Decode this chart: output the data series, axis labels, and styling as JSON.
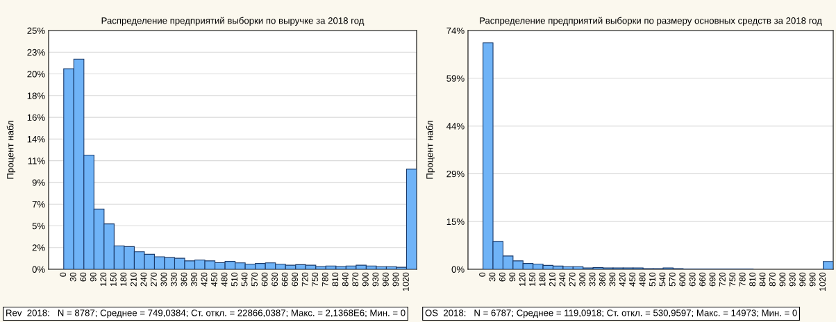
{
  "chart_data": [
    {
      "type": "histogram",
      "title": "Распределение предприятий выборки по выручке за 2018 год",
      "ylabel": "Процент набл",
      "color": "#6fb3f7",
      "bins": [
        0,
        30,
        60,
        90,
        120,
        150,
        180,
        210,
        240,
        270,
        300,
        330,
        360,
        390,
        420,
        450,
        480,
        510,
        540,
        570,
        600,
        630,
        660,
        690,
        720,
        750,
        780,
        810,
        840,
        870,
        900,
        930,
        960,
        990,
        1020,
        1050
      ],
      "values": [
        21.0,
        22.0,
        11.95,
        6.3,
        4.75,
        2.45,
        2.37,
        1.84,
        1.57,
        1.31,
        1.23,
        1.15,
        0.88,
        0.96,
        0.88,
        0.69,
        0.83,
        0.67,
        0.53,
        0.61,
        0.67,
        0.53,
        0.43,
        0.48,
        0.43,
        0.29,
        0.35,
        0.29,
        0.35,
        0.43,
        0.35,
        0.27,
        0.27,
        0.21,
        10.49
      ],
      "xlim": [
        -45,
        1050
      ],
      "xticks": [
        0,
        30,
        60,
        90,
        120,
        150,
        180,
        210,
        240,
        270,
        300,
        330,
        360,
        390,
        420,
        450,
        480,
        510,
        540,
        570,
        600,
        630,
        660,
        690,
        720,
        750,
        780,
        810,
        840,
        870,
        900,
        930,
        960,
        990,
        1020
      ],
      "ylim": [
        0,
        25
      ],
      "yticks": [
        {
          "value": 0,
          "label": "0%"
        },
        {
          "value": 2.2727,
          "label": "2%"
        },
        {
          "value": 4.5455,
          "label": "5%"
        },
        {
          "value": 6.8182,
          "label": "7%"
        },
        {
          "value": 9.0909,
          "label": "9%"
        },
        {
          "value": 11.3636,
          "label": "11%"
        },
        {
          "value": 13.6364,
          "label": "14%"
        },
        {
          "value": 15.9091,
          "label": "16%"
        },
        {
          "value": 18.1818,
          "label": "18%"
        },
        {
          "value": 20.4545,
          "label": "20%"
        },
        {
          "value": 22.7273,
          "label": "23%"
        },
        {
          "value": 25,
          "label": "25%"
        }
      ],
      "grid": "y",
      "annotations": [
        "Rev  2018:   N = 8787; Среднее = 749,0384; Ст. откл. = 22866,0387; Макс. = 2,1368E6; Мин. = 0"
      ]
    },
    {
      "type": "histogram",
      "title": "Распределение предприятий выборки по размеру основных средств за 2018 год",
      "ylabel": "Процент набл",
      "color": "#6fb3f7",
      "bins": [
        0,
        30,
        60,
        90,
        120,
        150,
        180,
        210,
        240,
        270,
        300,
        330,
        360,
        390,
        420,
        450,
        480,
        510,
        540,
        570,
        600,
        630,
        660,
        690,
        720,
        750,
        780,
        810,
        840,
        870,
        900,
        930,
        960,
        990,
        1020,
        1050
      ],
      "values": [
        69.9,
        8.6,
        4.1,
        2.6,
        1.8,
        1.6,
        1.2,
        1.0,
        0.8,
        0.8,
        0.4,
        0.5,
        0.4,
        0.4,
        0.4,
        0.4,
        0.2,
        0.2,
        0.4,
        0.2,
        0.1,
        0.1,
        0.1,
        0.1,
        0.1,
        0.1,
        0.1,
        0,
        0,
        0,
        0,
        0,
        0,
        0,
        2.4
      ],
      "xlim": [
        -45,
        1050
      ],
      "xticks": [
        0,
        30,
        60,
        90,
        120,
        150,
        180,
        210,
        240,
        270,
        300,
        330,
        360,
        390,
        420,
        450,
        480,
        510,
        540,
        570,
        600,
        630,
        660,
        690,
        720,
        750,
        780,
        810,
        840,
        870,
        900,
        930,
        960,
        990,
        1020
      ],
      "ylim": [
        0,
        73.7
      ],
      "yticks": [
        {
          "value": 0,
          "label": "0%"
        },
        {
          "value": 14.74,
          "label": "15%"
        },
        {
          "value": 29.48,
          "label": "29%"
        },
        {
          "value": 44.22,
          "label": "44%"
        },
        {
          "value": 58.96,
          "label": "59%"
        },
        {
          "value": 73.7,
          "label": "74%"
        }
      ],
      "grid": "y",
      "annotations": [
        "OS  2018:   N = 6787; Среднее = 119,0918; Ст. откл. = 530,9597; Макс. = 14973; Мин. = 0"
      ]
    }
  ]
}
